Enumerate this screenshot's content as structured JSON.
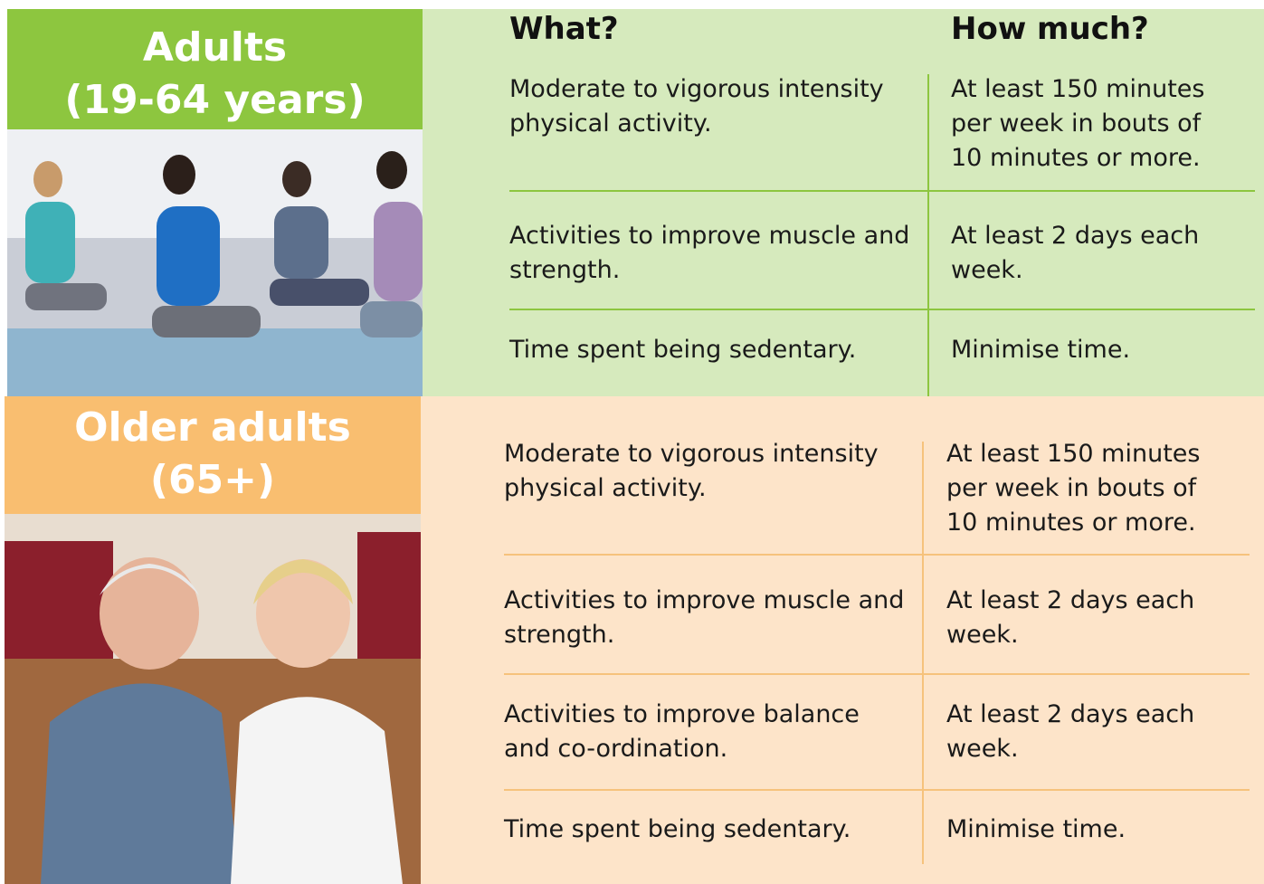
{
  "sections": [
    {
      "title": "Adults",
      "subtitle": "(19-64 years)",
      "columns": [
        "What?",
        "How much?"
      ],
      "rows": [
        {
          "what": "Moderate to vigorous intensity physical activity.",
          "how_much": "At least 150 minutes per week in bouts of 10 minutes or more."
        },
        {
          "what": "Activities to improve muscle and strength.",
          "how_much": "At least 2 days each week."
        },
        {
          "what": "Time spent being sedentary.",
          "how_much": "Minimise time."
        }
      ]
    },
    {
      "title": "Older adults",
      "subtitle": "(65+)",
      "rows": [
        {
          "what": "Moderate to vigorous intensity physical activity.",
          "how_much": "At least 150 minutes per week in bouts of 10 minutes or more."
        },
        {
          "what": "Activities to improve muscle and strength.",
          "how_much": "At least 2 days each week."
        },
        {
          "what": "Activities to improve balance and co-ordination.",
          "how_much": "At least 2 days each week."
        },
        {
          "what": "Time spent being sedentary.",
          "how_much": "Minimise time."
        }
      ]
    }
  ]
}
